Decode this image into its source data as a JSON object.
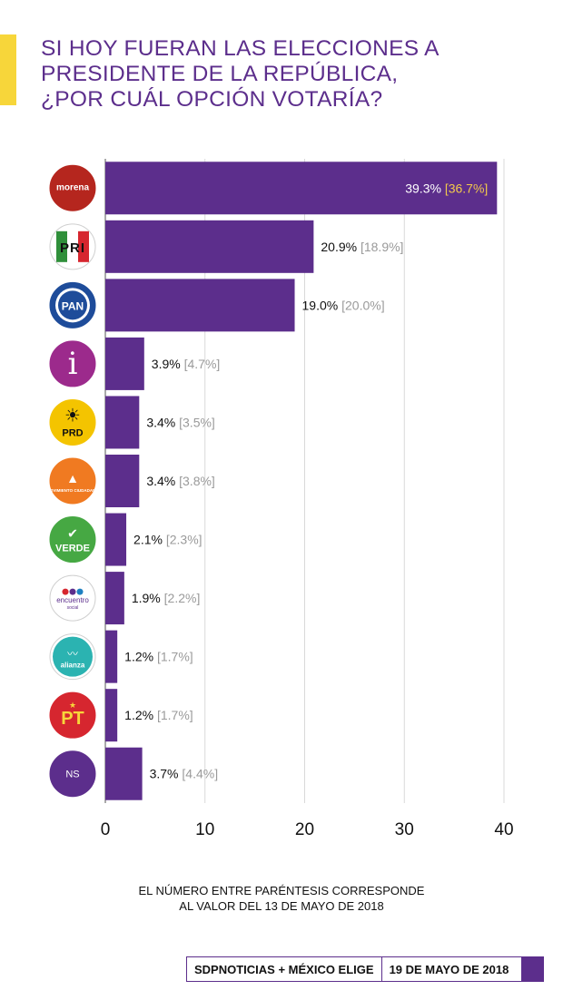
{
  "header": {
    "title_lines": [
      "SI HOY FUERAN LAS ELECCIONES A",
      "PRESIDENTE DE LA REPÚBLICA,",
      "¿POR CUÁL OPCIÓN VOTARÍA?"
    ]
  },
  "chart_data": {
    "type": "bar",
    "orientation": "horizontal",
    "categories": [
      "morena",
      "PRI",
      "PAN",
      "i",
      "PRD",
      "MOVIMIENTO CIUDADANO",
      "VERDE",
      "encuentro social",
      "alianza",
      "PT",
      "NS"
    ],
    "series": [
      {
        "values": [
          39.3,
          20.9,
          19.0,
          3.9,
          3.4,
          3.4,
          2.1,
          1.9,
          1.2,
          1.2,
          3.7
        ]
      },
      {
        "values": [
          36.7,
          18.9,
          20.0,
          4.7,
          3.5,
          3.8,
          2.3,
          2.2,
          1.7,
          1.7,
          4.4
        ]
      }
    ],
    "value_labels": [
      "39.3%",
      "20.9%",
      "19.0%",
      "3.9%",
      "3.4%",
      "3.4%",
      "2.1%",
      "1.9%",
      "1.2%",
      "1.2%",
      "3.7%"
    ],
    "previous_labels": [
      "[36.7%]",
      "[18.9%]",
      "[20.0%]",
      "[4.7%]",
      "[3.5%]",
      "[3.8%]",
      "[2.3%]",
      "[2.2%]",
      "[1.7%]",
      "[1.7%]",
      "[4.4%]"
    ],
    "xlim": [
      0,
      40
    ],
    "xticks": [
      "0",
      "10",
      "20",
      "30",
      "40"
    ],
    "grid": true,
    "bar_color": "#5c2e8c"
  },
  "logos": [
    {
      "icon": "morena-logo",
      "text": "morena",
      "color": "#b5261e"
    },
    {
      "icon": "pri-logo",
      "text": "PRI",
      "color": "#ffffff"
    },
    {
      "icon": "pan-logo",
      "text": "PAN",
      "color": "#1e4c9a"
    },
    {
      "icon": "independiente-logo",
      "text": "i",
      "color": "#9c2a8c"
    },
    {
      "icon": "prd-logo",
      "text": "PRD",
      "color": "#f4c400"
    },
    {
      "icon": "movimiento-ciudadano-logo",
      "text": "MOVIMIENTO CIUDADANO",
      "color": "#f07a21"
    },
    {
      "icon": "verde-logo",
      "text": "VERDE",
      "color": "#46a843"
    },
    {
      "icon": "encuentro-social-logo",
      "text": "encuentro social",
      "color": "#ffffff"
    },
    {
      "icon": "nueva-alianza-logo",
      "text": "alianza",
      "color": "#ffffff"
    },
    {
      "icon": "pt-logo",
      "text": "PT",
      "color": "#d6262f"
    },
    {
      "icon": "ns-logo",
      "text": "NS",
      "color": "#5c2e8c"
    }
  ],
  "footnote": {
    "lines": [
      "EL NÚMERO ENTRE PARÉNTESIS CORRESPONDE",
      "AL VALOR DEL 13 DE MAYO DE 2018"
    ]
  },
  "footer": {
    "source": "SDPNOTICIAS + MÉXICO ELIGE",
    "date": "19 DE MAYO DE 2018"
  },
  "colors": {
    "accent": "#f7d63a",
    "brand_purple": "#5c2e8c",
    "highlight_label": "#f2c94c",
    "muted_label": "#9a9a9a"
  }
}
